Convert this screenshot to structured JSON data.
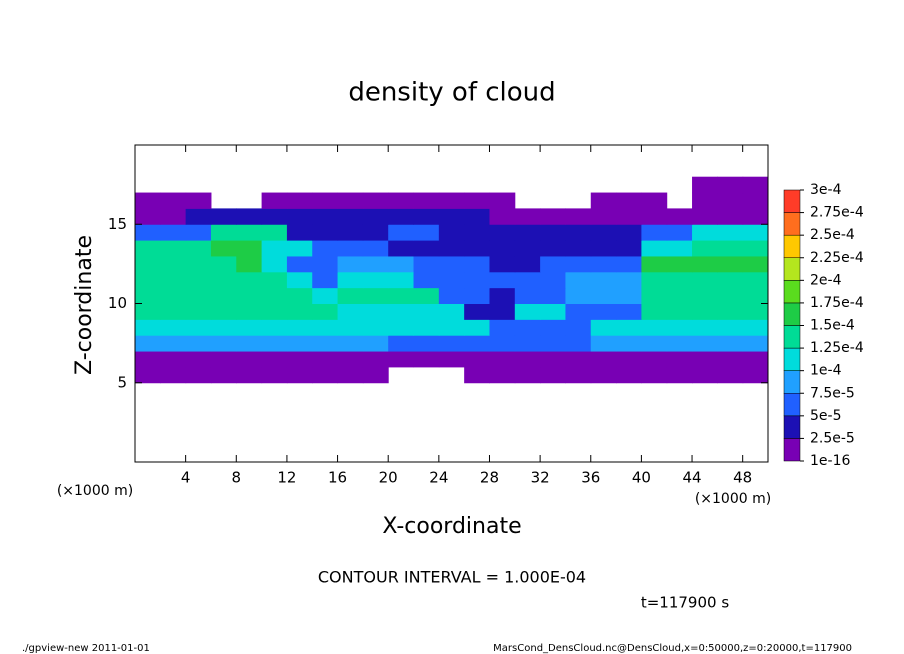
{
  "chart_data": {
    "type": "heatmap",
    "title": "density of cloud",
    "x_label": "X-coordinate",
    "y_label": "Z-coordinate",
    "x_unit_label": "(×1000 m)",
    "y_unit_label": "(×1000 m)",
    "annotation": "CONTOUR INTERVAL = 1.000E-04",
    "time_label": "t=117900 s",
    "footer_left": "./gpview-new  2011-01-01",
    "footer_right": "MarsCond_DensCloud.nc@DensCloud,x=0:50000,z=0:20000,t=117900",
    "xlim": [
      0,
      50
    ],
    "ylim": [
      0,
      20
    ],
    "xticks": [
      4,
      8,
      12,
      16,
      20,
      24,
      28,
      32,
      36,
      40,
      44,
      48
    ],
    "yticks": [
      5,
      10,
      15
    ],
    "x": [
      1,
      3,
      5,
      7,
      9,
      11,
      13,
      15,
      17,
      19,
      21,
      23,
      25,
      27,
      29,
      31,
      33,
      35,
      37,
      39,
      41,
      43,
      45,
      47,
      49
    ],
    "y": [
      5.5,
      6.5,
      7.5,
      8.5,
      9.5,
      10.5,
      11.5,
      12.5,
      13.5,
      14.5,
      15.5,
      16.5,
      17.5
    ],
    "values": [
      [
        1e-05,
        1e-05,
        1e-05,
        1e-05,
        1e-05,
        1e-05,
        1e-05,
        1e-05,
        1e-05,
        1e-05,
        null,
        null,
        null,
        1e-05,
        1e-05,
        1e-05,
        1e-05,
        1e-05,
        1e-05,
        1e-05,
        1e-05,
        1e-05,
        1e-05,
        1e-05,
        1e-05
      ],
      [
        2e-05,
        2e-05,
        2e-05,
        2e-05,
        2e-05,
        2e-05,
        2e-05,
        2e-05,
        2e-05,
        2e-05,
        2e-05,
        2e-05,
        2e-05,
        2e-05,
        2e-05,
        2e-05,
        2e-05,
        2e-05,
        2e-05,
        2e-05,
        2e-05,
        2e-05,
        2e-05,
        2e-05,
        2e-05
      ],
      [
        9e-05,
        9e-05,
        9e-05,
        9e-05,
        9e-05,
        9e-05,
        9e-05,
        9e-05,
        9e-05,
        9e-05,
        5e-05,
        5e-05,
        5e-05,
        5e-05,
        5e-05,
        5e-05,
        5e-05,
        5e-05,
        8e-05,
        8e-05,
        8e-05,
        8e-05,
        8e-05,
        8e-05,
        8e-05
      ],
      [
        0.00012,
        0.00012,
        0.00012,
        0.00012,
        0.00012,
        0.00012,
        0.00012,
        0.00012,
        0.00012,
        0.00012,
        0.0001,
        0.0001,
        0.0001,
        0.0001,
        7e-05,
        7e-05,
        7e-05,
        7e-05,
        0.00011,
        0.00011,
        0.00011,
        0.00011,
        0.00011,
        0.00011,
        0.00011
      ],
      [
        0.00013,
        0.00013,
        0.00013,
        0.00013,
        0.00013,
        0.00013,
        0.00013,
        0.00013,
        0.00011,
        0.00011,
        0.00011,
        0.00011,
        0.00011,
        4e-05,
        4e-05,
        0.0001,
        0.0001,
        7e-05,
        7e-05,
        7e-05,
        0.000125,
        0.000125,
        0.000125,
        0.000125,
        0.000125
      ],
      [
        0.00014,
        0.00014,
        0.00014,
        0.00014,
        0.00014,
        0.00014,
        0.00014,
        0.00011,
        0.000125,
        0.000125,
        0.000125,
        0.000125,
        6e-05,
        6e-05,
        3e-05,
        7e-05,
        7e-05,
        9e-05,
        9e-05,
        9e-05,
        0.000135,
        0.000135,
        0.000135,
        0.000135,
        0.000135
      ],
      [
        0.000145,
        0.000145,
        0.000145,
        0.000145,
        0.000145,
        0.000145,
        0.00011,
        5e-05,
        0.00011,
        0.00011,
        0.00011,
        6e-05,
        6e-05,
        6e-05,
        5e-05,
        5e-05,
        5e-05,
        9e-05,
        9e-05,
        9e-05,
        0.000145,
        0.000145,
        0.000145,
        0.000145,
        0.000145
      ],
      [
        0.00014,
        0.00014,
        0.00014,
        0.00014,
        0.000155,
        0.00011,
        6e-05,
        6e-05,
        9e-05,
        9e-05,
        9e-05,
        5e-05,
        5e-05,
        5e-05,
        3e-05,
        3e-05,
        6e-05,
        6e-05,
        6e-05,
        6e-05,
        0.000155,
        0.000155,
        0.000155,
        0.000155,
        0.000155
      ],
      [
        0.00013,
        0.00013,
        0.00013,
        0.00015,
        0.00015,
        0.00012,
        0.0001,
        5e-05,
        5e-05,
        5e-05,
        4e-05,
        4e-05,
        4e-05,
        3e-05,
        3e-05,
        4e-05,
        4e-05,
        4e-05,
        4e-05,
        4e-05,
        0.00011,
        0.00011,
        0.00014,
        0.00014,
        0.00014
      ],
      [
        6e-05,
        6e-05,
        6e-05,
        0.000125,
        0.000125,
        0.000125,
        3e-05,
        3e-05,
        3e-05,
        3e-05,
        5e-05,
        5e-05,
        3e-05,
        3e-05,
        3e-05,
        3e-05,
        3e-05,
        3e-05,
        3e-05,
        3e-05,
        5e-05,
        5e-05,
        0.0001,
        0.0001,
        0.0001
      ],
      [
        2e-05,
        2e-05,
        3e-05,
        3e-05,
        3e-05,
        3e-05,
        3e-05,
        3e-05,
        3e-05,
        3e-05,
        3e-05,
        3e-05,
        3e-05,
        3e-05,
        2e-05,
        2e-05,
        2e-05,
        2e-05,
        2e-05,
        2e-05,
        1.5e-05,
        1.5e-05,
        1.5e-05,
        1.5e-05,
        1.5e-05
      ],
      [
        1e-05,
        1e-05,
        1e-05,
        null,
        null,
        1e-05,
        1e-05,
        1e-05,
        1e-05,
        1e-05,
        1e-05,
        1e-05,
        1e-05,
        1e-05,
        1e-05,
        null,
        null,
        null,
        1e-05,
        1e-05,
        1e-05,
        null,
        1e-05,
        1e-05,
        1e-05
      ],
      [
        null,
        null,
        null,
        null,
        null,
        null,
        null,
        null,
        null,
        null,
        null,
        null,
        null,
        null,
        null,
        null,
        null,
        null,
        null,
        null,
        null,
        null,
        1e-05,
        1e-05,
        1e-05
      ]
    ],
    "colorbar": {
      "ticks": [
        {
          "value": 1e-16,
          "label": "1e-16"
        },
        {
          "value": 2.5e-05,
          "label": "2.5e-5"
        },
        {
          "value": 5e-05,
          "label": "5e-5"
        },
        {
          "value": 7.5e-05,
          "label": "7.5e-5"
        },
        {
          "value": 0.0001,
          "label": "1e-4"
        },
        {
          "value": 0.000125,
          "label": "1.25e-4"
        },
        {
          "value": 0.00015,
          "label": "1.5e-4"
        },
        {
          "value": 0.000175,
          "label": "1.75e-4"
        },
        {
          "value": 0.0002,
          "label": "2e-4"
        },
        {
          "value": 0.000225,
          "label": "2.25e-4"
        },
        {
          "value": 0.00025,
          "label": "2.5e-4"
        },
        {
          "value": 0.000275,
          "label": "2.75e-4"
        },
        {
          "value": 0.0003,
          "label": "3e-4"
        }
      ],
      "colors": [
        "#7800b4",
        "#1c10b4",
        "#2060ff",
        "#20a0ff",
        "#00dcdc",
        "#00dc96",
        "#1ecc46",
        "#5adc1e",
        "#b4e61e",
        "#ffc800",
        "#ff6e1e",
        "#ff3c28",
        "#ff8c8c"
      ]
    }
  }
}
